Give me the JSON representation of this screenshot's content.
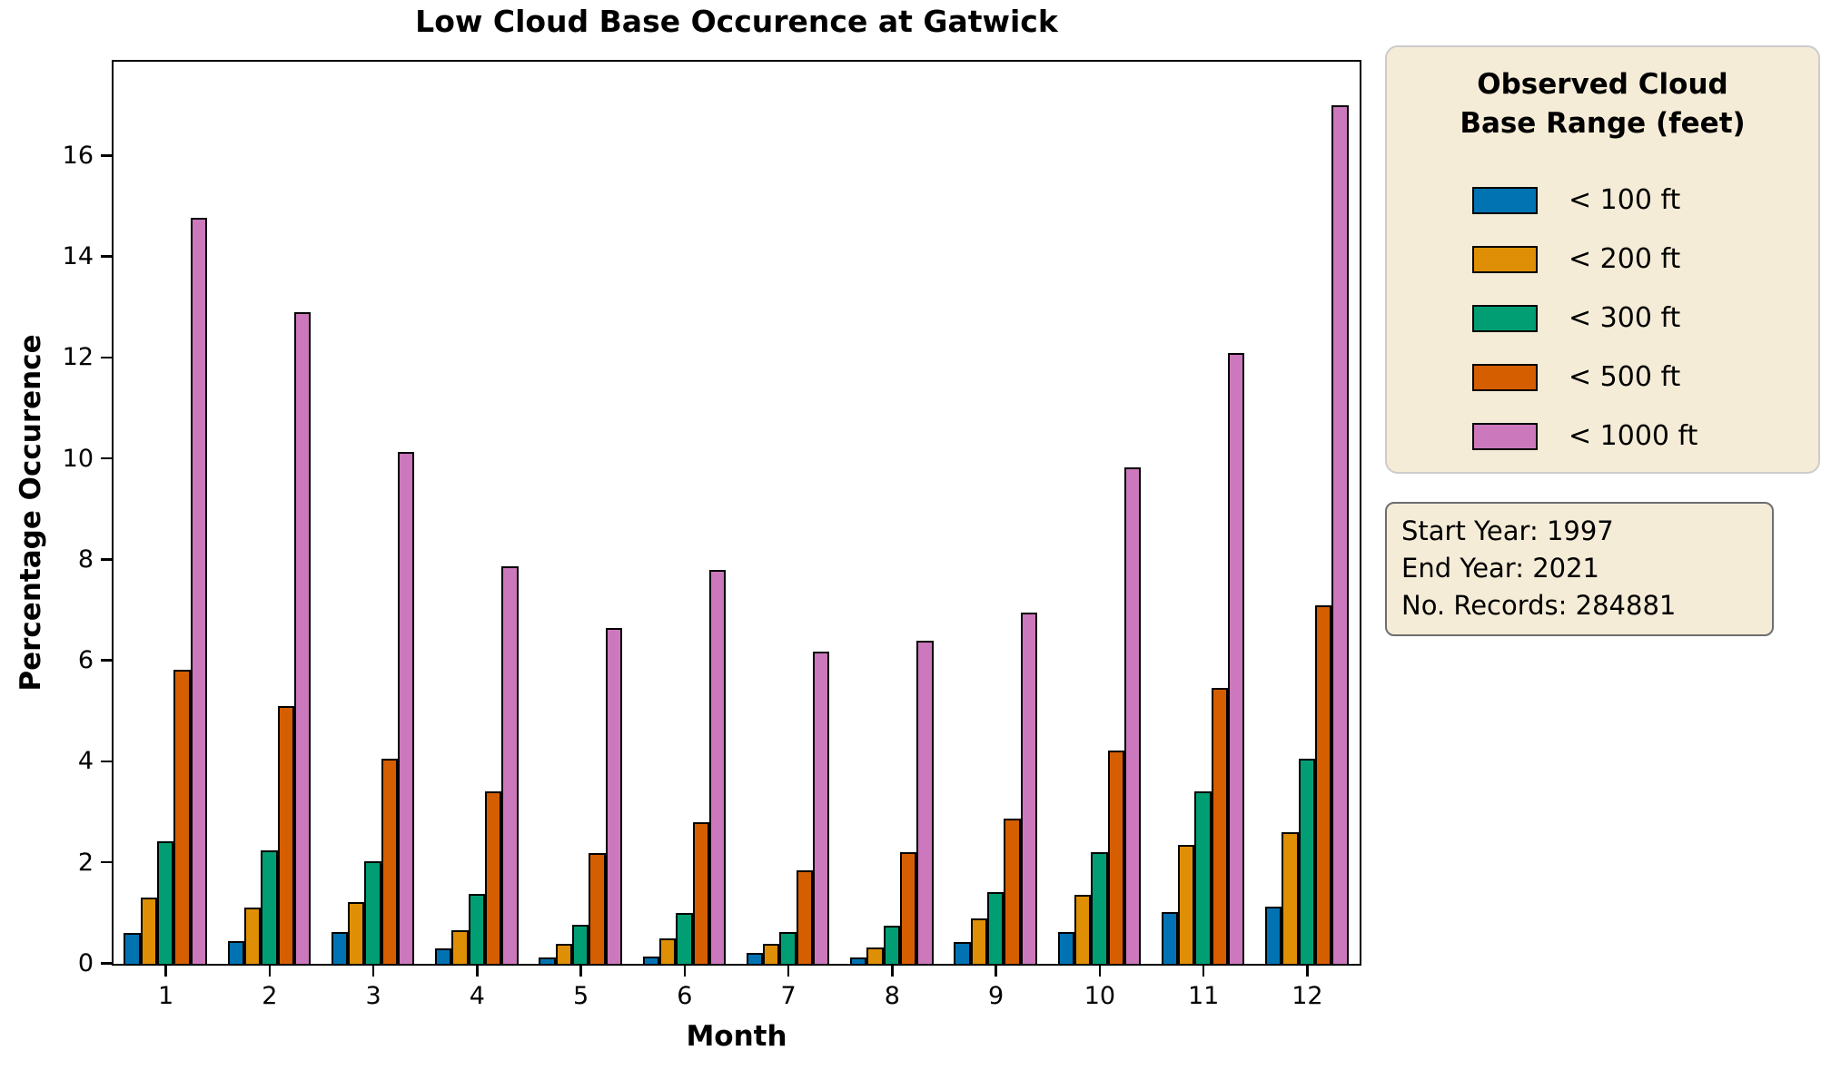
{
  "chart_data": {
    "type": "bar",
    "title": "Low Cloud Base Occurence at Gatwick",
    "xlabel": "Month",
    "ylabel": "Percentage Occurence",
    "categories": [
      "1",
      "2",
      "3",
      "4",
      "5",
      "6",
      "7",
      "8",
      "9",
      "10",
      "11",
      "12"
    ],
    "yticks": [
      0,
      2,
      4,
      6,
      8,
      10,
      12,
      14,
      16
    ],
    "ylim": [
      0,
      17.85
    ],
    "grid": false,
    "bar_edge_color": "#000000",
    "series": [
      {
        "name": "< 100 ft",
        "color": "#0173b2",
        "values": [
          0.62,
          0.45,
          0.63,
          0.31,
          0.13,
          0.14,
          0.22,
          0.13,
          0.43,
          0.63,
          1.02,
          1.14
        ]
      },
      {
        "name": "< 200 ft",
        "color": "#de8f05",
        "values": [
          1.31,
          1.11,
          1.23,
          0.67,
          0.39,
          0.51,
          0.4,
          0.33,
          0.9,
          1.36,
          2.35,
          2.61
        ]
      },
      {
        "name": "< 300 ft",
        "color": "#029e73",
        "values": [
          2.43,
          2.25,
          2.03,
          1.38,
          0.77,
          1.0,
          0.63,
          0.76,
          1.42,
          2.22,
          3.42,
          4.07
        ]
      },
      {
        "name": "< 500 ft",
        "color": "#d55e00",
        "values": [
          5.83,
          5.1,
          4.06,
          3.42,
          2.2,
          2.81,
          1.85,
          2.22,
          2.88,
          4.22,
          5.47,
          7.1
        ]
      },
      {
        "name": "< 1000 ft",
        "color": "#cc78bc",
        "values": [
          14.77,
          12.9,
          10.14,
          7.87,
          6.66,
          7.8,
          6.19,
          6.4,
          6.95,
          9.84,
          12.1,
          17.0
        ]
      }
    ],
    "legend": {
      "title_lines": [
        "Observed Cloud",
        "Base Range (feet)"
      ],
      "position": "outside-upper-right",
      "bg": "#f5ecd7",
      "border": "#cccccc"
    },
    "annotation_box": {
      "lines": [
        "Start Year: 1997",
        "End Year: 2021",
        "No. Records: 284881"
      ],
      "bg": "#f5ecd7",
      "border": "#6e6e6e"
    }
  }
}
